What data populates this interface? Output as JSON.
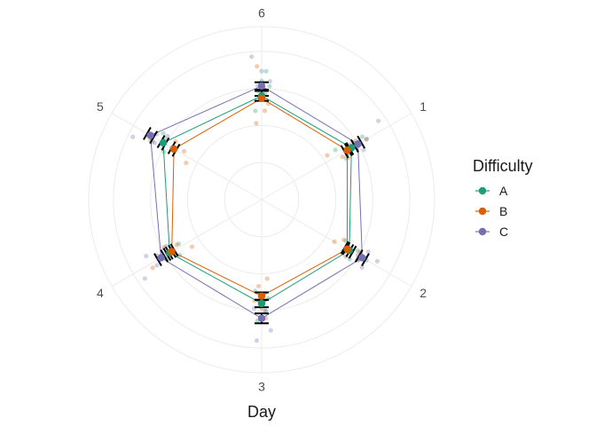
{
  "chart_data": {
    "type": "radar",
    "xlabel": "Day",
    "categories": [
      "1",
      "2",
      "3",
      "4",
      "5",
      "6"
    ],
    "r_range": [
      0,
      7
    ],
    "grid": true,
    "legend": {
      "title": "Difficulty",
      "position": "right",
      "entries": [
        "A",
        "B",
        "C"
      ]
    },
    "series": [
      {
        "name": "A",
        "color": "#1b9e77",
        "means": [
          4.2,
          4.1,
          4.2,
          4.3,
          4.6,
          4.2
        ],
        "errors": [
          0.15,
          0.15,
          0.15,
          0.12,
          0.1,
          0.2
        ],
        "points": [
          [
            3.6,
            4.8,
            4.5,
            4.0,
            3.8
          ],
          [
            3.8,
            4.4,
            4.9,
            3.9,
            4.3
          ],
          [
            4.0,
            4.5,
            4.3,
            4.9,
            3.7
          ],
          [
            4.0,
            4.5,
            4.8,
            3.8,
            4.3
          ],
          [
            4.4,
            5.0,
            4.2,
            4.6,
            4.8
          ],
          [
            3.6,
            4.4,
            4.8,
            5.2,
            4.6
          ]
        ]
      },
      {
        "name": "B",
        "color": "#d95f02",
        "means": [
          4.0,
          4.0,
          3.9,
          4.2,
          4.1,
          4.1
        ],
        "errors": [
          0.12,
          0.12,
          0.15,
          0.12,
          0.1,
          0.1
        ],
        "points": [
          [
            3.2,
            4.5,
            4.9,
            3.7,
            3.9
          ],
          [
            3.7,
            4.5,
            3.4,
            4.6,
            4.1
          ],
          [
            3.2,
            4.8,
            4.4,
            3.5,
            4.1
          ],
          [
            3.4,
            5.2,
            4.6,
            3.9,
            4.4
          ],
          [
            3.4,
            5.1,
            4.6,
            3.7,
            4.2
          ],
          [
            3.1,
            5.4,
            4.7,
            3.6,
            3.9
          ]
        ]
      },
      {
        "name": "C",
        "color": "#7570b3",
        "means": [
          4.5,
          4.7,
          4.8,
          4.7,
          5.2,
          4.6
        ],
        "errors": [
          0.15,
          0.15,
          0.2,
          0.15,
          0.15,
          0.15
        ],
        "points": [
          [
            5.7,
            4.2,
            4.9,
            3.9,
            4.6
          ],
          [
            4.8,
            5.3,
            4.5,
            4.6,
            4.9
          ],
          [
            5.3,
            4.5,
            4.8,
            5.7,
            4.4
          ],
          [
            5.7,
            5.0,
            4.4,
            4.8,
            5.2
          ],
          [
            5.8,
            4.9,
            5.3,
            5.0,
            4.6
          ],
          [
            5.8,
            4.6,
            5.2,
            4.3,
            4.8
          ]
        ]
      }
    ]
  }
}
